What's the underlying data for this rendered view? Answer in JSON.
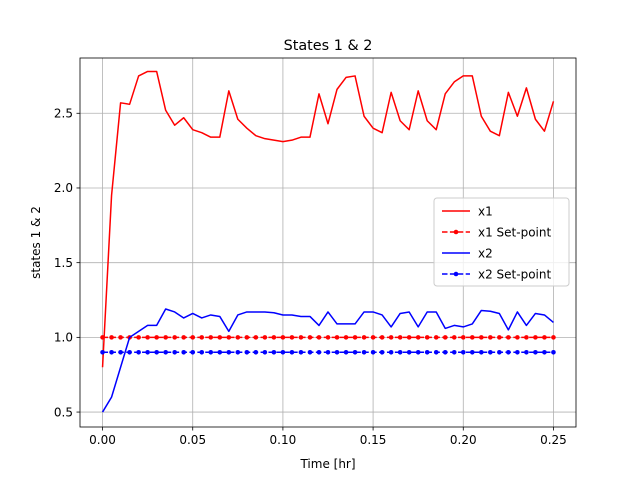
{
  "chart_data": {
    "type": "line",
    "title": "States 1 & 2",
    "xlabel": "Time [hr]",
    "ylabel": "states 1 & 2",
    "xlim": [
      -0.0125,
      0.2625
    ],
    "ylim": [
      0.4,
      2.87
    ],
    "xticks": [
      0.0,
      0.05,
      0.1,
      0.15,
      0.2,
      0.25
    ],
    "xtick_labels": [
      "0.00",
      "0.05",
      "0.10",
      "0.15",
      "0.20",
      "0.25"
    ],
    "yticks": [
      0.5,
      1.0,
      1.5,
      2.0,
      2.5
    ],
    "ytick_labels": [
      "0.5",
      "1.0",
      "1.5",
      "2.0",
      "2.5"
    ],
    "grid": true,
    "legend_position": "center-right",
    "x": [
      0.0,
      0.005,
      0.01,
      0.015,
      0.02,
      0.025,
      0.03,
      0.035,
      0.04,
      0.045,
      0.05,
      0.055,
      0.06,
      0.065,
      0.07,
      0.075,
      0.08,
      0.085,
      0.09,
      0.095,
      0.1,
      0.105,
      0.11,
      0.115,
      0.12,
      0.125,
      0.13,
      0.135,
      0.14,
      0.145,
      0.15,
      0.155,
      0.16,
      0.165,
      0.17,
      0.175,
      0.18,
      0.185,
      0.19,
      0.195,
      0.2,
      0.205,
      0.21,
      0.215,
      0.22,
      0.225,
      0.23,
      0.235,
      0.24,
      0.245,
      0.25
    ],
    "series": [
      {
        "name": "x1",
        "style": "solid",
        "color": "#ff0000",
        "values": [
          0.8,
          1.95,
          2.57,
          2.56,
          2.75,
          2.78,
          2.78,
          2.52,
          2.42,
          2.47,
          2.39,
          2.37,
          2.34,
          2.34,
          2.65,
          2.46,
          2.4,
          2.35,
          2.33,
          2.32,
          2.31,
          2.32,
          2.34,
          2.34,
          2.63,
          2.43,
          2.66,
          2.74,
          2.75,
          2.48,
          2.4,
          2.37,
          2.64,
          2.45,
          2.39,
          2.65,
          2.45,
          2.39,
          2.63,
          2.71,
          2.75,
          2.75,
          2.48,
          2.38,
          2.35,
          2.64,
          2.48,
          2.67,
          2.46,
          2.38,
          2.58
        ]
      },
      {
        "name": "x1 Set-point",
        "style": "dashed-marker",
        "color": "#ff0000",
        "values": [
          1.0,
          1.0,
          1.0,
          1.0,
          1.0,
          1.0,
          1.0,
          1.0,
          1.0,
          1.0,
          1.0,
          1.0,
          1.0,
          1.0,
          1.0,
          1.0,
          1.0,
          1.0,
          1.0,
          1.0,
          1.0,
          1.0,
          1.0,
          1.0,
          1.0,
          1.0,
          1.0,
          1.0,
          1.0,
          1.0,
          1.0,
          1.0,
          1.0,
          1.0,
          1.0,
          1.0,
          1.0,
          1.0,
          1.0,
          1.0,
          1.0,
          1.0,
          1.0,
          1.0,
          1.0,
          1.0,
          1.0,
          1.0,
          1.0,
          1.0,
          1.0
        ]
      },
      {
        "name": "x2",
        "style": "solid",
        "color": "#0000ff",
        "values": [
          0.5,
          0.6,
          0.8,
          1.0,
          1.04,
          1.08,
          1.08,
          1.19,
          1.17,
          1.13,
          1.16,
          1.13,
          1.15,
          1.14,
          1.04,
          1.15,
          1.17,
          1.17,
          1.17,
          1.165,
          1.15,
          1.15,
          1.14,
          1.14,
          1.08,
          1.17,
          1.09,
          1.09,
          1.09,
          1.17,
          1.17,
          1.15,
          1.07,
          1.16,
          1.17,
          1.07,
          1.17,
          1.17,
          1.06,
          1.08,
          1.07,
          1.09,
          1.18,
          1.175,
          1.16,
          1.05,
          1.17,
          1.08,
          1.16,
          1.15,
          1.1
        ]
      },
      {
        "name": "x2 Set-point",
        "style": "dashed-marker",
        "color": "#0000ff",
        "values": [
          0.9,
          0.9,
          0.9,
          0.9,
          0.9,
          0.9,
          0.9,
          0.9,
          0.9,
          0.9,
          0.9,
          0.9,
          0.9,
          0.9,
          0.9,
          0.9,
          0.9,
          0.9,
          0.9,
          0.9,
          0.9,
          0.9,
          0.9,
          0.9,
          0.9,
          0.9,
          0.9,
          0.9,
          0.9,
          0.9,
          0.9,
          0.9,
          0.9,
          0.9,
          0.9,
          0.9,
          0.9,
          0.9,
          0.9,
          0.9,
          0.9,
          0.9,
          0.9,
          0.9,
          0.9,
          0.9,
          0.9,
          0.9,
          0.9,
          0.9,
          0.9
        ]
      }
    ]
  }
}
